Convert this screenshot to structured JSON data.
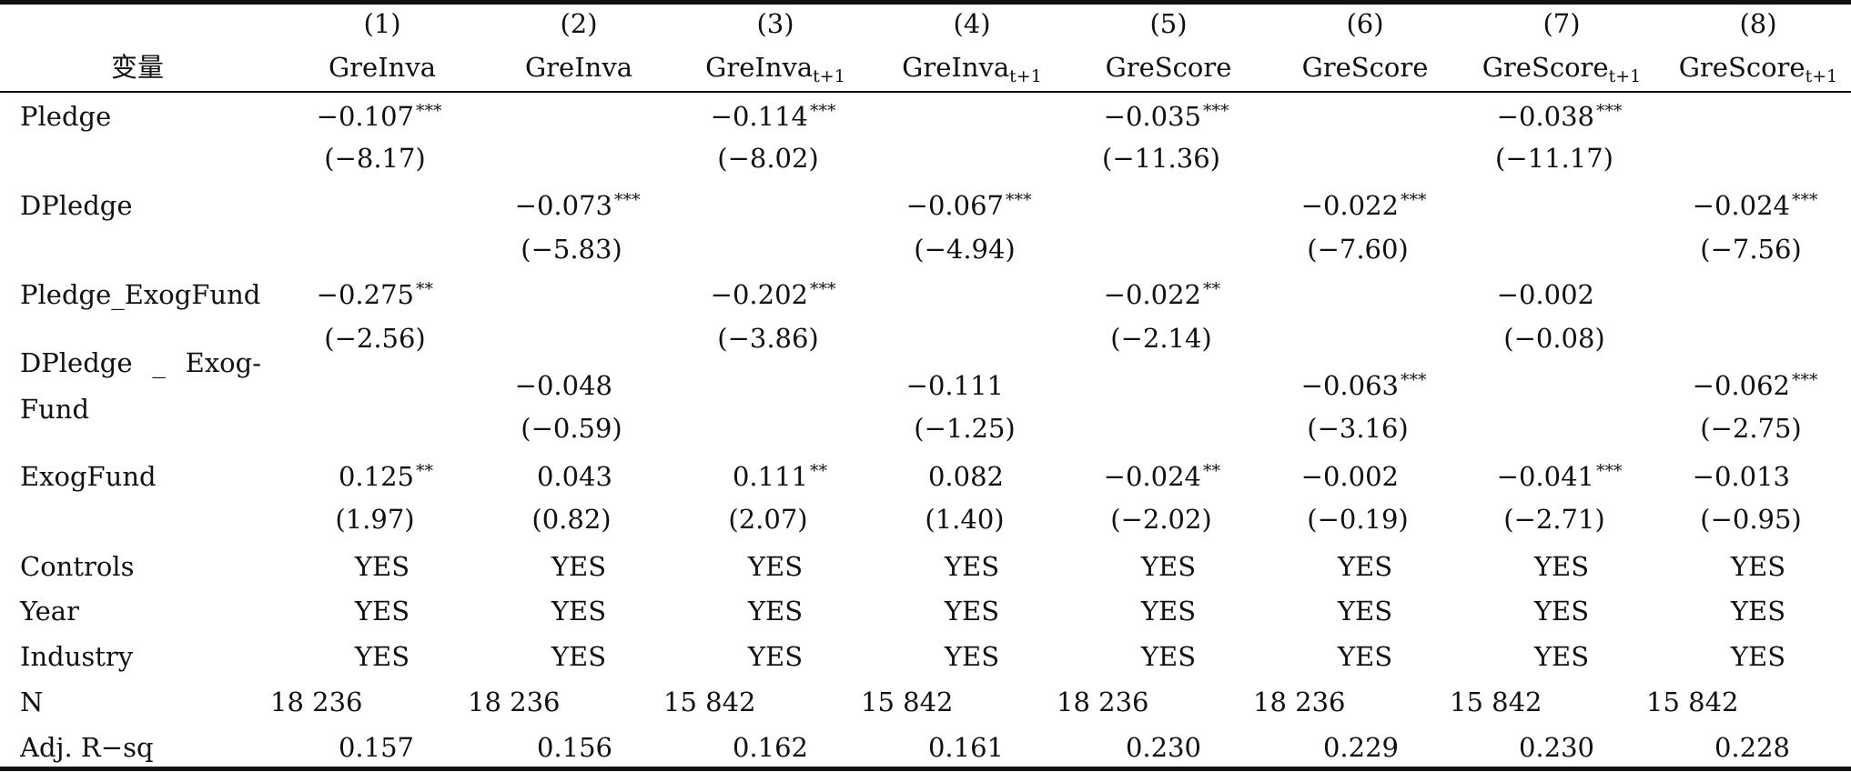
{
  "header": {
    "col_numbers": [
      "(1)",
      "(2)",
      "(3)",
      "(4)",
      "(5)",
      "(6)",
      "(7)",
      "(8)"
    ],
    "var_label": "变量",
    "dep_vars": [
      {
        "main": "GreInva",
        "sub": ""
      },
      {
        "main": "GreInva",
        "sub": ""
      },
      {
        "main": "GreInva",
        "sub": "t+1"
      },
      {
        "main": "GreInva",
        "sub": "t+1"
      },
      {
        "main": "GreScore",
        "sub": ""
      },
      {
        "main": "GreScore",
        "sub": ""
      },
      {
        "main": "GreScore",
        "sub": "t+1"
      },
      {
        "main": "GreScore",
        "sub": "t+1"
      }
    ]
  },
  "rows": {
    "pledge": {
      "label": "Pledge",
      "coef": [
        {
          "v": "−0.107",
          "s": "***"
        },
        null,
        {
          "v": "−0.114",
          "s": "***"
        },
        null,
        {
          "v": "−0.035",
          "s": "***"
        },
        null,
        {
          "v": "−0.038",
          "s": "***"
        },
        null
      ],
      "t": [
        "(−8.17)",
        null,
        "(−8.02)",
        null,
        "(−11.36)",
        null,
        "(−11.17)",
        null
      ]
    },
    "dpledge": {
      "label": "DPledge",
      "coef": [
        null,
        {
          "v": "−0.073",
          "s": "***"
        },
        null,
        {
          "v": "−0.067",
          "s": "***"
        },
        null,
        {
          "v": "−0.022",
          "s": "***"
        },
        null,
        {
          "v": "−0.024",
          "s": "***"
        }
      ],
      "t": [
        null,
        "(−5.83)",
        null,
        "(−4.94)",
        null,
        "(−7.60)",
        null,
        "(−7.56)"
      ]
    },
    "pledge_exog": {
      "label": "Pledge_ExogFund",
      "coef": [
        {
          "v": "−0.275",
          "s": "**"
        },
        null,
        {
          "v": "−0.202",
          "s": "***"
        },
        null,
        {
          "v": "−0.022",
          "s": "**"
        },
        null,
        {
          "v": "−0.002",
          "s": ""
        },
        null
      ],
      "t": [
        "(−2.56)",
        null,
        "(−3.86)",
        null,
        "(−2.14)",
        null,
        "(−0.08)",
        null
      ]
    },
    "dpledge_exog": {
      "label_line1": "DPledge _ Exog-",
      "label_line2": "Fund",
      "coef": [
        null,
        {
          "v": "−0.048",
          "s": ""
        },
        null,
        {
          "v": "−0.111",
          "s": ""
        },
        null,
        {
          "v": "−0.063",
          "s": "***"
        },
        null,
        {
          "v": "−0.062",
          "s": "***"
        }
      ],
      "t": [
        null,
        "(−0.59)",
        null,
        "(−1.25)",
        null,
        "(−3.16)",
        null,
        "(−2.75)"
      ]
    },
    "exog": {
      "label": "ExogFund",
      "coef": [
        {
          "v": "0.125",
          "s": "**"
        },
        {
          "v": "0.043",
          "s": ""
        },
        {
          "v": "0.111",
          "s": "**"
        },
        {
          "v": "0.082",
          "s": ""
        },
        {
          "v": "−0.024",
          "s": "**"
        },
        {
          "v": "−0.002",
          "s": ""
        },
        {
          "v": "−0.041",
          "s": "***"
        },
        {
          "v": "−0.013",
          "s": ""
        }
      ],
      "t": [
        "(1.97)",
        "(0.82)",
        "(2.07)",
        "(1.40)",
        "(−2.02)",
        "(−0.19)",
        "(−2.71)",
        "(−0.95)"
      ]
    },
    "controls": {
      "label": "Controls",
      "vals": [
        "YES",
        "YES",
        "YES",
        "YES",
        "YES",
        "YES",
        "YES",
        "YES"
      ]
    },
    "year": {
      "label": "Year",
      "vals": [
        "YES",
        "YES",
        "YES",
        "YES",
        "YES",
        "YES",
        "YES",
        "YES"
      ]
    },
    "industry": {
      "label": "Industry",
      "vals": [
        "YES",
        "YES",
        "YES",
        "YES",
        "YES",
        "YES",
        "YES",
        "YES"
      ]
    },
    "n": {
      "label": "N",
      "vals": [
        "18 236",
        "18 236",
        "15 842",
        "15 842",
        "18 236",
        "18 236",
        "15 842",
        "15 842"
      ]
    },
    "adjr": {
      "label": "Adj. R−sq",
      "vals": [
        "0.157",
        "0.156",
        "0.162",
        "0.161",
        "0.230",
        "0.229",
        "0.230",
        "0.228"
      ]
    }
  }
}
